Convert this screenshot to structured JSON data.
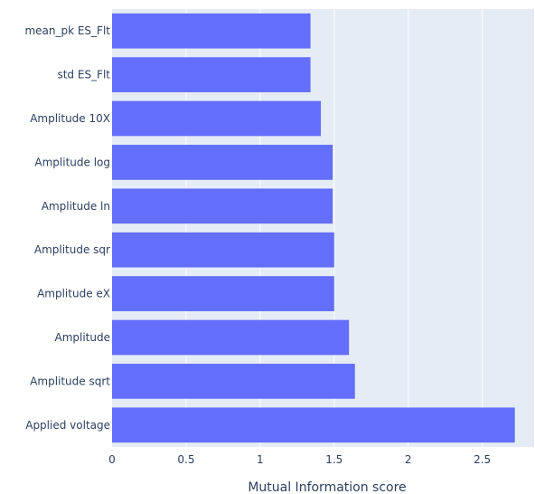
{
  "chart_data": {
    "type": "bar",
    "orientation": "horizontal",
    "categories": [
      "Applied voltage",
      "Amplitude sqrt",
      "Amplitude",
      "Amplitude eX",
      "Amplitude sqr",
      "Amplitude ln",
      "Amplitude log",
      "Amplitude 10X",
      "std ES_Flt",
      "mean_pk ES_Flt"
    ],
    "values": [
      2.72,
      1.64,
      1.6,
      1.5,
      1.5,
      1.49,
      1.49,
      1.41,
      1.34,
      1.34
    ],
    "xlabel": "Mutual Information score",
    "ylabel": "",
    "xlim": [
      0,
      2.85
    ],
    "xticks": [
      "0",
      "0.5",
      "1",
      "1.5",
      "2",
      "2.5"
    ],
    "xtick_values": [
      0,
      0.5,
      1,
      1.5,
      2,
      2.5
    ],
    "grid": "vertical",
    "bar_color": "#636efa",
    "plot_background": "#e5ecf6"
  }
}
